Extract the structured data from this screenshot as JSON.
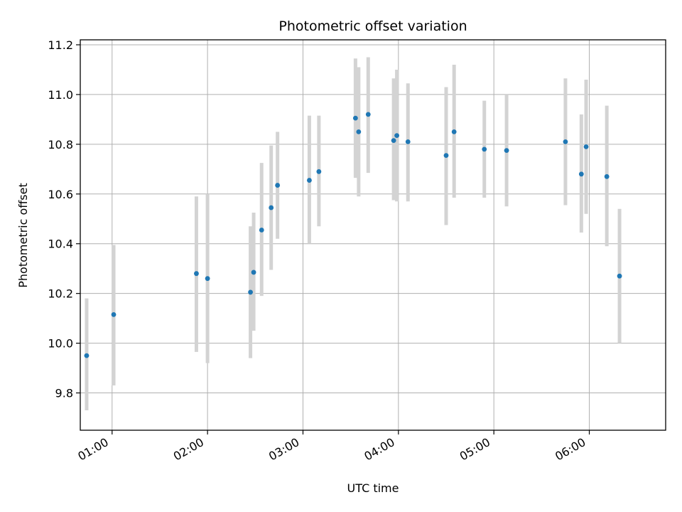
{
  "chart_data": {
    "type": "scatter",
    "title": "Photometric offset variation",
    "xlabel": "UTC time",
    "ylabel": "Photometric offset",
    "x_ticks": [
      "01:00",
      "02:00",
      "03:00",
      "04:00",
      "05:00",
      "06:00"
    ],
    "y_ticks": [
      "9.8",
      "10.0",
      "10.2",
      "10.4",
      "10.6",
      "10.8",
      "11.0",
      "11.2"
    ],
    "xlim": [
      "00:40",
      "06:48"
    ],
    "ylim": [
      9.65,
      11.22
    ],
    "grid": true,
    "marker_color": "#1f77b4",
    "errorbar_color": "#d3d3d3",
    "points": [
      {
        "time": "00:44",
        "value": 9.95,
        "err_low": 9.73,
        "err_high": 10.18
      },
      {
        "time": "01:01",
        "value": 10.115,
        "err_low": 9.83,
        "err_high": 10.395
      },
      {
        "time": "01:53",
        "value": 10.28,
        "err_low": 9.965,
        "err_high": 10.59
      },
      {
        "time": "02:00",
        "value": 10.26,
        "err_low": 9.92,
        "err_high": 10.6
      },
      {
        "time": "02:27",
        "value": 10.205,
        "err_low": 9.94,
        "err_high": 10.47
      },
      {
        "time": "02:29",
        "value": 10.285,
        "err_low": 10.05,
        "err_high": 10.525
      },
      {
        "time": "02:34",
        "value": 10.455,
        "err_low": 10.19,
        "err_high": 10.725
      },
      {
        "time": "02:40",
        "value": 10.545,
        "err_low": 10.295,
        "err_high": 10.795
      },
      {
        "time": "02:44",
        "value": 10.635,
        "err_low": 10.42,
        "err_high": 10.85
      },
      {
        "time": "03:04",
        "value": 10.655,
        "err_low": 10.4,
        "err_high": 10.915
      },
      {
        "time": "03:10",
        "value": 10.69,
        "err_low": 10.47,
        "err_high": 10.915
      },
      {
        "time": "03:33",
        "value": 10.905,
        "err_low": 10.665,
        "err_high": 11.145
      },
      {
        "time": "03:35",
        "value": 10.85,
        "err_low": 10.59,
        "err_high": 11.11
      },
      {
        "time": "03:41",
        "value": 10.92,
        "err_low": 10.685,
        "err_high": 11.15
      },
      {
        "time": "03:57",
        "value": 10.815,
        "err_low": 10.575,
        "err_high": 11.065
      },
      {
        "time": "03:59",
        "value": 10.835,
        "err_low": 10.57,
        "err_high": 11.1
      },
      {
        "time": "04:06",
        "value": 10.81,
        "err_low": 10.57,
        "err_high": 11.045
      },
      {
        "time": "04:30",
        "value": 10.755,
        "err_low": 10.475,
        "err_high": 11.03
      },
      {
        "time": "04:35",
        "value": 10.85,
        "err_low": 10.585,
        "err_high": 11.12
      },
      {
        "time": "04:54",
        "value": 10.78,
        "err_low": 10.585,
        "err_high": 10.975
      },
      {
        "time": "05:08",
        "value": 10.775,
        "err_low": 10.55,
        "err_high": 11.0
      },
      {
        "time": "05:45",
        "value": 10.81,
        "err_low": 10.555,
        "err_high": 11.065
      },
      {
        "time": "05:55",
        "value": 10.68,
        "err_low": 10.445,
        "err_high": 10.92
      },
      {
        "time": "05:58",
        "value": 10.79,
        "err_low": 10.52,
        "err_high": 11.06
      },
      {
        "time": "06:11",
        "value": 10.67,
        "err_low": 10.39,
        "err_high": 10.955
      },
      {
        "time": "06:19",
        "value": 10.27,
        "err_low": 10.0,
        "err_high": 10.54
      }
    ]
  }
}
